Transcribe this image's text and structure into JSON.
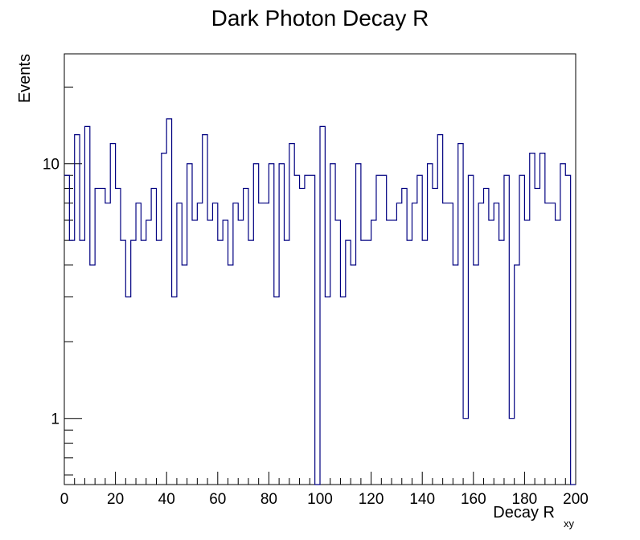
{
  "chart_data": {
    "type": "histogram",
    "title": "Dark Photon Decay R",
    "xlabel": "Decay R",
    "xlabel_subscript": "xy",
    "ylabel": "Events",
    "xlim": [
      0,
      200
    ],
    "ylim": [
      0.55,
      27
    ],
    "log_y": true,
    "grid": false,
    "bin_width": 2,
    "x_ticks": [
      0,
      20,
      40,
      60,
      80,
      100,
      120,
      140,
      160,
      180,
      200
    ],
    "x_tick_labels": [
      "0",
      "20",
      "40",
      "60",
      "80",
      "100",
      "120",
      "140",
      "160",
      "180",
      "200"
    ],
    "y_tick_labels": [
      {
        "value": 1,
        "label": "1"
      },
      {
        "value": 10,
        "label": "10"
      }
    ],
    "line_color": "#000080",
    "values": [
      9,
      5,
      13,
      5,
      14,
      4,
      8,
      8,
      7,
      12,
      8,
      5,
      3,
      5,
      7,
      5,
      6,
      8,
      5,
      11,
      15,
      3,
      7,
      4,
      10,
      6,
      7,
      13,
      6,
      7,
      5,
      6,
      4,
      7,
      6,
      8,
      5,
      10,
      7,
      7,
      10,
      3,
      10,
      5,
      12,
      9,
      8,
      9,
      9,
      0,
      14,
      3,
      10,
      6,
      3,
      5,
      4,
      10,
      5,
      5,
      6,
      9,
      9,
      6,
      6,
      7,
      8,
      5,
      7,
      9,
      5,
      10,
      8,
      13,
      7,
      7,
      4,
      12,
      1,
      9,
      4,
      7,
      8,
      6,
      7,
      5,
      9,
      1,
      4,
      9,
      6,
      11,
      8,
      11,
      7,
      7,
      6,
      10,
      9,
      0
    ]
  }
}
